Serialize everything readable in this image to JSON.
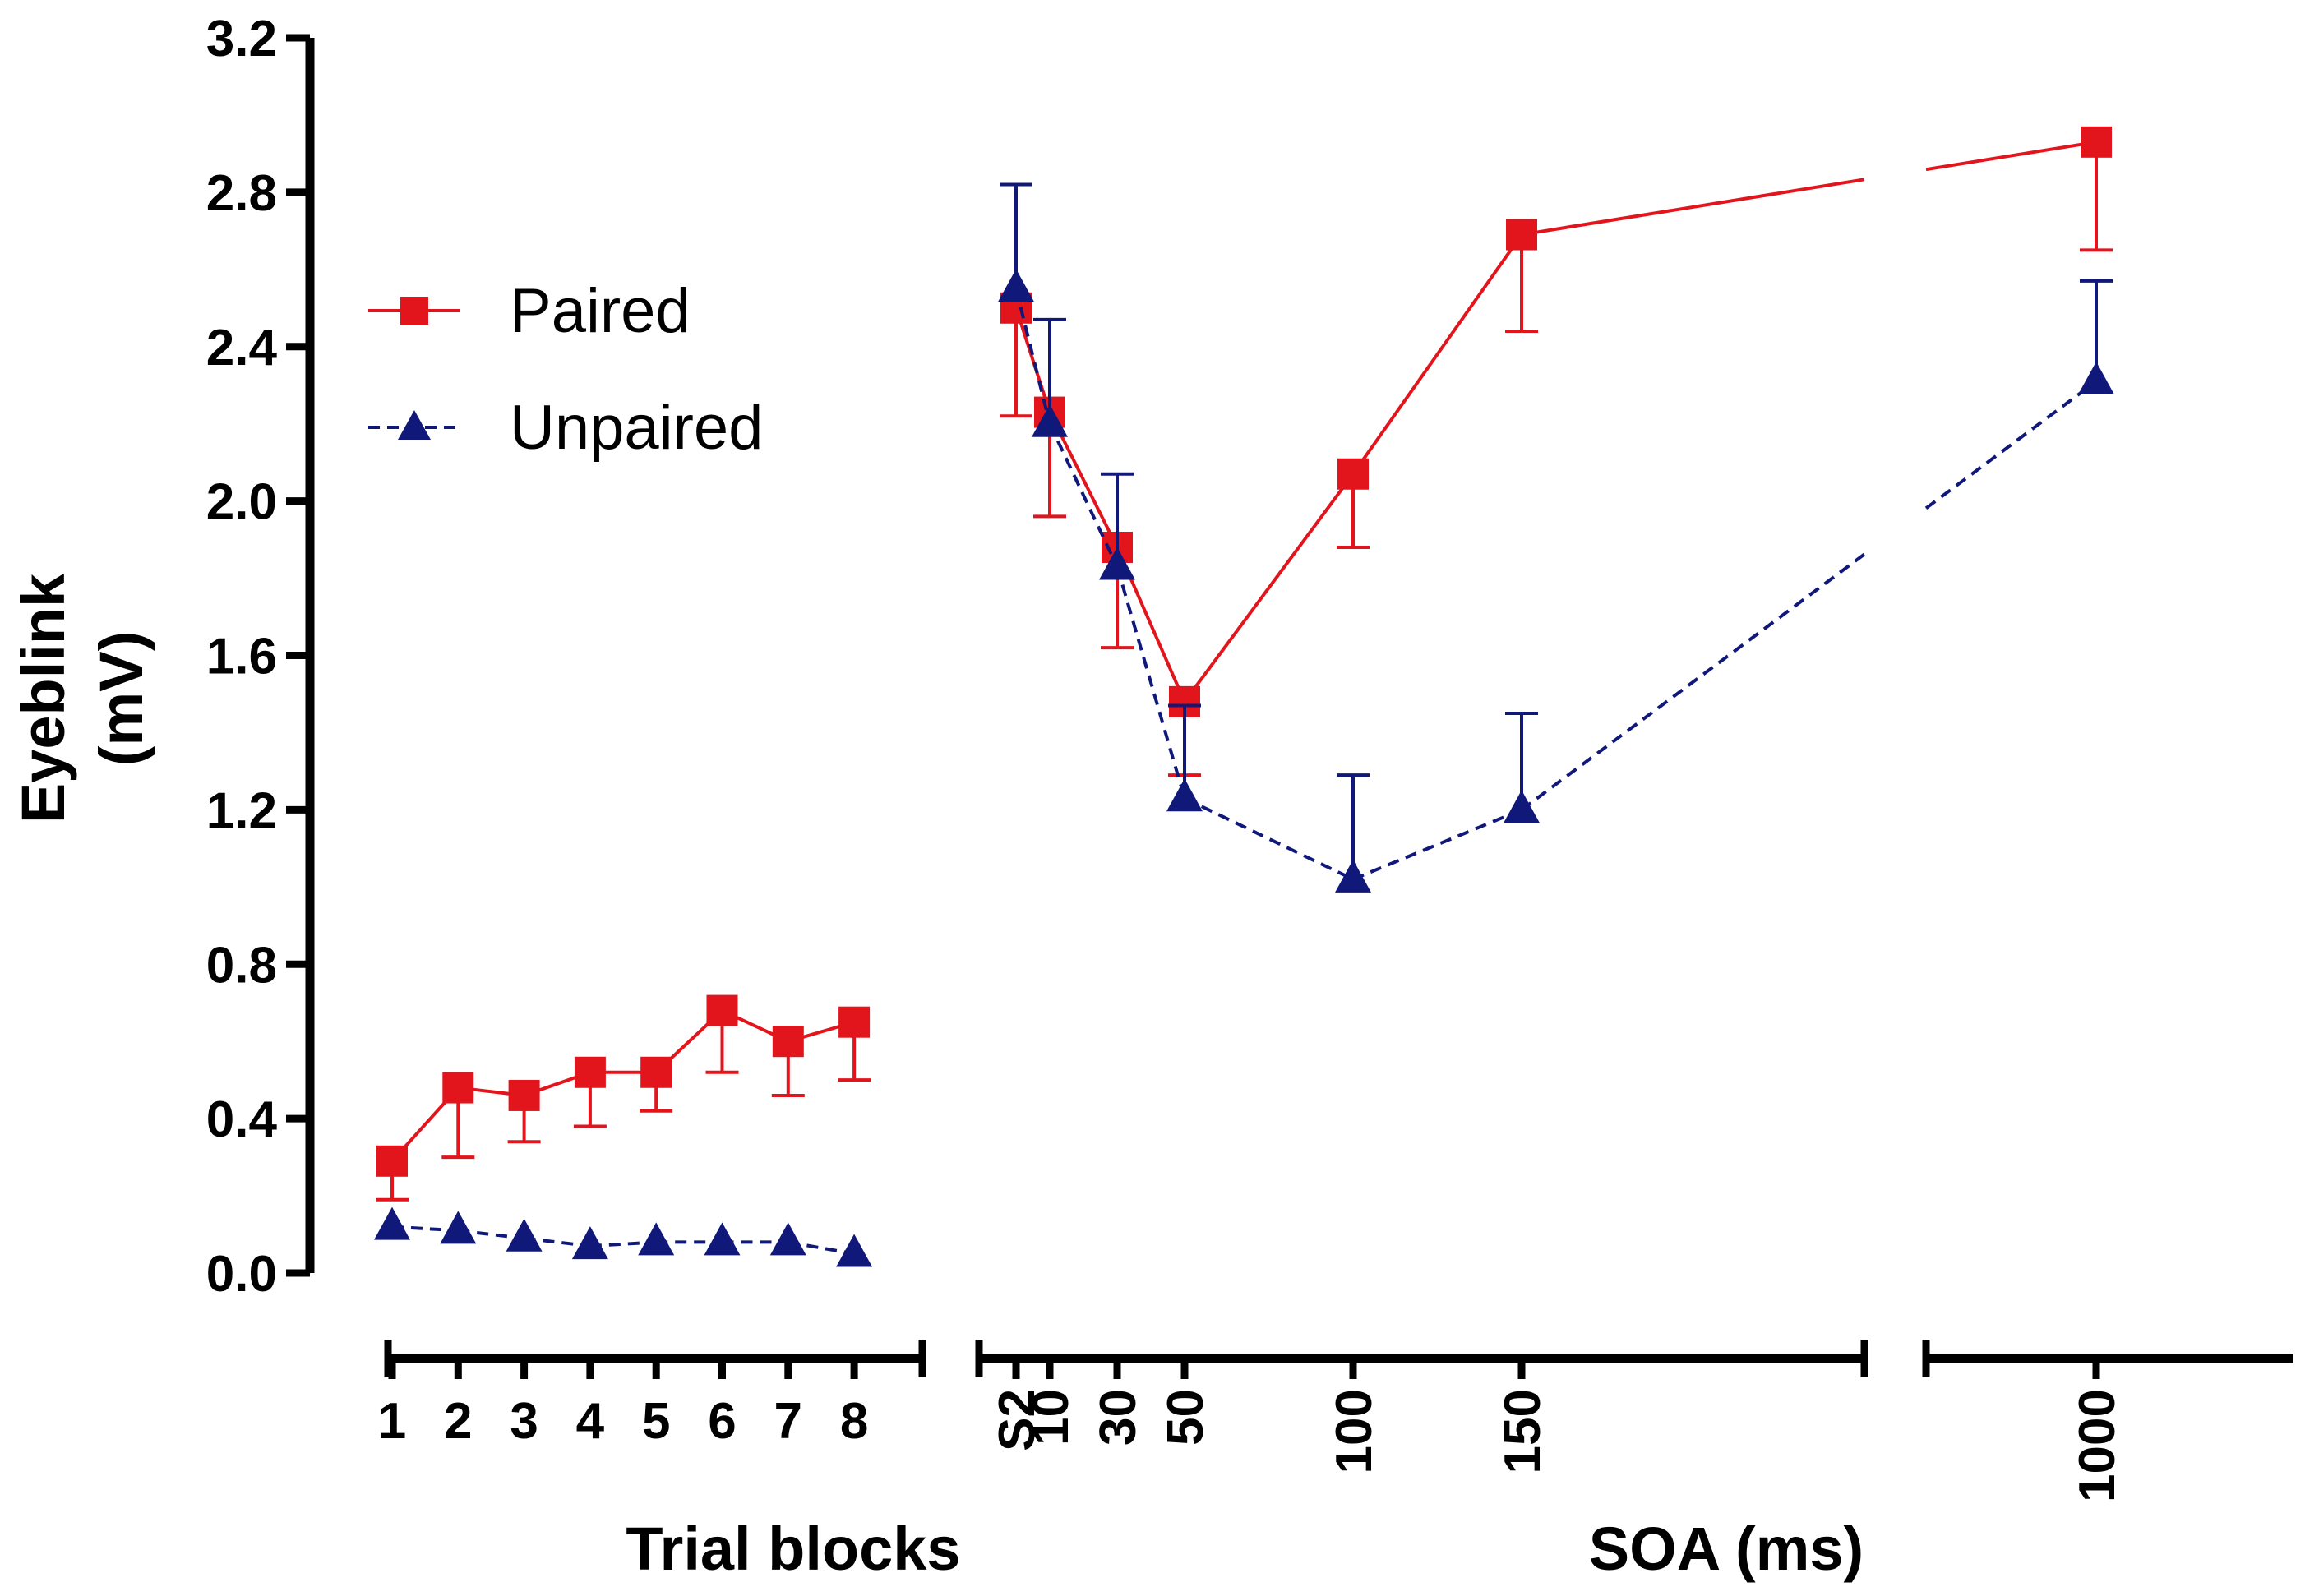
{
  "chart_data": {
    "type": "line",
    "y_axis": {
      "label_lines": [
        "Eyeblink",
        "(mV)"
      ],
      "ylim": [
        0,
        3.2
      ],
      "ticks": [
        "0.0",
        "0.4",
        "0.8",
        "1.2",
        "1.6",
        "2.0",
        "2.4",
        "2.8",
        "3.2"
      ]
    },
    "x_axes": {
      "trial_blocks": {
        "title": "Trial blocks",
        "ticks": [
          "1",
          "2",
          "3",
          "4",
          "5",
          "6",
          "7",
          "8"
        ]
      },
      "soa": {
        "title": "SOA (ms)",
        "ticks": [
          "S2",
          "10",
          "30",
          "50",
          "100",
          "150",
          "1000"
        ]
      }
    },
    "legend": {
      "position": "upper-left",
      "entries": [
        "Paired",
        "Unpaired"
      ]
    },
    "series": [
      {
        "name": "Paired",
        "color": "#e2151d",
        "marker": "square",
        "line": "solid",
        "trial_blocks": {
          "x": [
            1,
            2,
            3,
            4,
            5,
            6,
            7,
            8
          ],
          "values": [
            0.29,
            0.48,
            0.46,
            0.52,
            0.52,
            0.68,
            0.6,
            0.65
          ],
          "error_below": [
            0.1,
            0.18,
            0.12,
            0.14,
            0.1,
            0.16,
            0.14,
            0.15
          ]
        },
        "soa": {
          "x": [
            "S2",
            "10",
            "30",
            "50",
            "100",
            "150",
            "1000"
          ],
          "values": [
            2.5,
            2.23,
            1.88,
            1.48,
            2.07,
            2.69,
            2.93
          ],
          "error_below": [
            0.28,
            0.27,
            0.26,
            0.19,
            0.19,
            0.25,
            0.28
          ]
        }
      },
      {
        "name": "Unpaired",
        "color": "#10197a",
        "marker": "triangle",
        "line": "dashed",
        "trial_blocks": {
          "x": [
            1,
            2,
            3,
            4,
            5,
            6,
            7,
            8
          ],
          "values": [
            0.12,
            0.11,
            0.09,
            0.07,
            0.08,
            0.08,
            0.08,
            0.05
          ]
        },
        "soa": {
          "x": [
            "S2",
            "10",
            "30",
            "50",
            "100",
            "150",
            "1000"
          ],
          "values": [
            2.55,
            2.2,
            1.83,
            1.23,
            1.02,
            1.2,
            2.31
          ],
          "error_above": [
            0.27,
            0.27,
            0.24,
            0.24,
            0.27,
            0.25,
            0.26
          ]
        }
      }
    ]
  }
}
